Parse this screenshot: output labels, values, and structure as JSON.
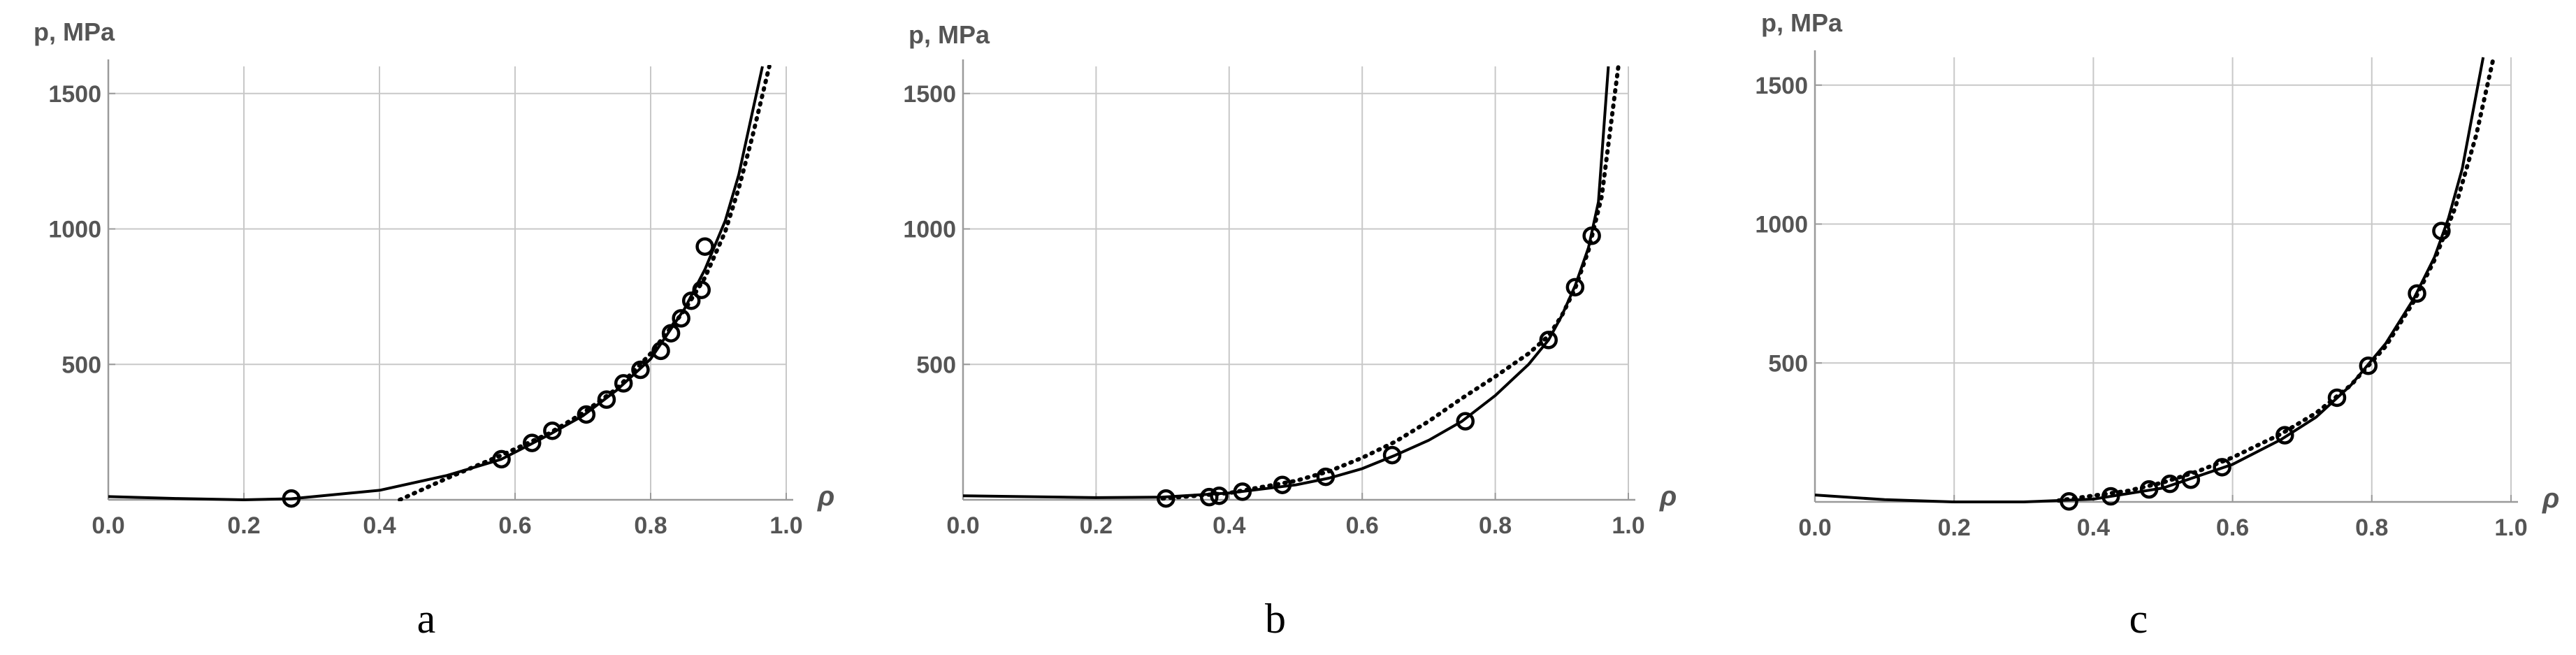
{
  "chart_data": [
    {
      "type": "scatter",
      "panel_label": "a",
      "xlabel": "ρ",
      "ylabel": "p, MPa",
      "xlim": [
        0.0,
        1.0
      ],
      "ylim": [
        0,
        1600
      ],
      "xticks": [
        "0.0",
        "0.2",
        "0.4",
        "0.6",
        "0.8",
        "1.0"
      ],
      "yticks": [
        "500",
        "1000",
        "1500"
      ],
      "grid": true,
      "series": [
        {
          "style": "markers",
          "marker": "open-circle",
          "x": [
            0.27,
            0.58,
            0.625,
            0.655,
            0.705,
            0.735,
            0.76,
            0.785,
            0.815,
            0.83,
            0.845,
            0.86,
            0.875,
            0.88
          ],
          "y": [
            5,
            150,
            210,
            255,
            315,
            370,
            430,
            480,
            550,
            615,
            670,
            735,
            775,
            935
          ]
        },
        {
          "style": "solid",
          "x": [
            0.0,
            0.1,
            0.2,
            0.27,
            0.4,
            0.5,
            0.58,
            0.65,
            0.7,
            0.75,
            0.8,
            0.85,
            0.88,
            0.91,
            0.93,
            0.95,
            0.965
          ],
          "y": [
            12,
            5,
            0,
            4,
            35,
            90,
            150,
            240,
            310,
            405,
            520,
            705,
            850,
            1030,
            1200,
            1430,
            1600
          ]
        },
        {
          "style": "dotted",
          "x": [
            0.43,
            0.5,
            0.58,
            0.65,
            0.7,
            0.75,
            0.8,
            0.85,
            0.88,
            0.91,
            0.93,
            0.95,
            0.975
          ],
          "y": [
            0,
            80,
            165,
            245,
            320,
            410,
            540,
            700,
            820,
            990,
            1150,
            1340,
            1600
          ]
        }
      ]
    },
    {
      "type": "scatter",
      "panel_label": "b",
      "xlabel": "ρ",
      "ylabel": "p, MPa",
      "xlim": [
        0.0,
        1.0
      ],
      "ylim": [
        0,
        1600
      ],
      "xticks": [
        "0.0",
        "0.2",
        "0.4",
        "0.6",
        "0.8",
        "1.0"
      ],
      "yticks": [
        "500",
        "1000",
        "1500"
      ],
      "grid": true,
      "series": [
        {
          "style": "markers",
          "marker": "open-circle",
          "x": [
            0.305,
            0.37,
            0.385,
            0.42,
            0.48,
            0.545,
            0.645,
            0.755,
            0.88,
            0.92,
            0.945
          ],
          "y": [
            5,
            10,
            15,
            30,
            55,
            85,
            165,
            290,
            590,
            785,
            975
          ]
        },
        {
          "style": "solid",
          "x": [
            0.0,
            0.2,
            0.3,
            0.4,
            0.5,
            0.55,
            0.6,
            0.65,
            0.7,
            0.75,
            0.8,
            0.85,
            0.88,
            0.9,
            0.92,
            0.94,
            0.955,
            0.97
          ],
          "y": [
            15,
            8,
            10,
            25,
            55,
            80,
            115,
            165,
            220,
            290,
            385,
            500,
            590,
            680,
            790,
            930,
            1100,
            1600
          ]
        },
        {
          "style": "dotted",
          "x": [
            0.3,
            0.4,
            0.5,
            0.55,
            0.6,
            0.65,
            0.7,
            0.75,
            0.8,
            0.85,
            0.88,
            0.9,
            0.92,
            0.94,
            0.96,
            0.985
          ],
          "y": [
            5,
            25,
            70,
            105,
            155,
            215,
            290,
            375,
            455,
            540,
            605,
            680,
            780,
            920,
            1120,
            1600
          ]
        }
      ]
    },
    {
      "type": "scatter",
      "panel_label": "c",
      "xlabel": "ρ",
      "ylabel": "p, MPa",
      "xlim": [
        0.0,
        1.0
      ],
      "ylim": [
        0,
        1600
      ],
      "xticks": [
        "0.0",
        "0.2",
        "0.4",
        "0.6",
        "0.8",
        "1.0"
      ],
      "yticks": [
        "500",
        "1000",
        "1500"
      ],
      "grid": true,
      "series": [
        {
          "style": "markers",
          "marker": "open-circle",
          "x": [
            0.365,
            0.425,
            0.48,
            0.51,
            0.54,
            0.585,
            0.675,
            0.75,
            0.795,
            0.865,
            0.9
          ],
          "y": [
            2,
            20,
            45,
            65,
            80,
            125,
            240,
            375,
            490,
            750,
            975
          ]
        },
        {
          "style": "solid",
          "x": [
            0.0,
            0.1,
            0.2,
            0.3,
            0.4,
            0.5,
            0.6,
            0.67,
            0.72,
            0.77,
            0.82,
            0.86,
            0.89,
            0.91,
            0.93,
            0.945,
            0.96
          ],
          "y": [
            25,
            8,
            0,
            0,
            10,
            50,
            135,
            225,
            305,
            420,
            570,
            730,
            880,
            1020,
            1200,
            1400,
            1600
          ]
        },
        {
          "style": "dotted",
          "x": [
            0.35,
            0.45,
            0.5,
            0.55,
            0.6,
            0.67,
            0.72,
            0.77,
            0.82,
            0.86,
            0.89,
            0.92,
            0.95,
            0.975
          ],
          "y": [
            5,
            40,
            70,
            110,
            160,
            245,
            320,
            420,
            560,
            720,
            870,
            1060,
            1320,
            1600
          ]
        }
      ]
    }
  ]
}
